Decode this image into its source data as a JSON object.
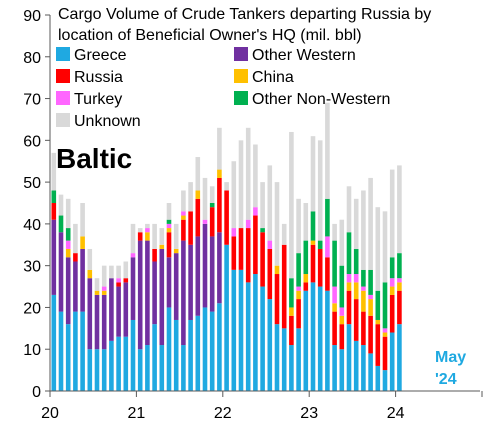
{
  "chart_data": {
    "type": "bar",
    "stacked": true,
    "title": "Cargo Volume of Crude Tankers departing Russia by location of Beneficial Owner's HQ (mil. bbl)",
    "label": "Baltic",
    "annotation": {
      "line1": "May",
      "line2": "'24"
    },
    "ylim": [
      0,
      90
    ],
    "yticks": [
      0,
      10,
      20,
      30,
      40,
      50,
      60,
      70,
      80,
      90
    ],
    "xticks": [
      {
        "label": "20",
        "month_index": 0
      },
      {
        "label": "21",
        "month_index": 12
      },
      {
        "label": "22",
        "month_index": 24
      },
      {
        "label": "23",
        "month_index": 36
      },
      {
        "label": "24",
        "month_index": 48
      }
    ],
    "grid": false,
    "legend_position": "top-left",
    "series": [
      {
        "name": "Greece",
        "color": "#1fa9e1",
        "values": [
          23,
          19,
          16,
          19,
          19,
          10,
          10,
          10,
          12,
          13,
          13,
          17,
          10,
          11,
          16,
          11,
          20,
          17,
          11,
          17,
          18,
          20,
          19,
          21,
          35,
          29,
          29,
          26,
          28,
          25,
          22,
          16,
          15,
          11,
          15,
          24,
          26,
          25,
          24,
          11,
          10,
          16,
          12,
          11,
          9,
          6,
          5,
          14,
          16
        ]
      },
      {
        "name": "Other Western",
        "color": "#7030a0",
        "values": [
          18,
          19,
          16,
          12,
          15,
          17,
          13,
          13,
          15,
          12,
          13,
          15,
          26,
          25,
          15,
          23,
          12,
          16,
          25,
          18,
          19,
          20,
          18,
          17,
          0,
          0,
          0,
          0,
          0,
          0,
          0,
          0,
          0,
          0,
          0,
          0,
          0,
          0,
          0,
          0,
          0,
          0,
          0,
          0,
          0,
          0,
          0,
          0,
          0
        ]
      },
      {
        "name": "Russia",
        "color": "#ff0000",
        "values": [
          4,
          0,
          0,
          2,
          0,
          0,
          0,
          0,
          0,
          1,
          1,
          0,
          2,
          0,
          3,
          0,
          6,
          0,
          5,
          8,
          9,
          0,
          7,
          13,
          13,
          8,
          10,
          13,
          14,
          13,
          12,
          12,
          20,
          7,
          7,
          2,
          9,
          9,
          8,
          8,
          6,
          8,
          10,
          8,
          9,
          10,
          8,
          9,
          8
        ]
      },
      {
        "name": "China",
        "color": "#ffc000",
        "values": [
          0,
          0,
          2,
          0,
          3,
          2,
          1,
          1,
          0,
          0,
          0,
          0,
          0,
          2,
          0,
          1,
          1,
          1,
          1,
          0,
          2,
          0,
          0,
          2,
          0,
          0,
          0,
          0,
          0,
          0,
          0,
          2,
          0,
          2,
          2,
          2,
          1,
          0,
          0,
          2,
          2,
          2,
          4,
          5,
          4,
          1,
          1,
          2,
          2
        ]
      },
      {
        "name": "Turkey",
        "color": "#ff66ff",
        "values": [
          0,
          0,
          2,
          0,
          0,
          0,
          0,
          1,
          0,
          1,
          0,
          1,
          0,
          1,
          0,
          0,
          1,
          0,
          1,
          0,
          0,
          1,
          0,
          0,
          0,
          2,
          0,
          2,
          2,
          0,
          2,
          0,
          0,
          0,
          1,
          0,
          0,
          0,
          5,
          4,
          2,
          2,
          2,
          1,
          1,
          0,
          1,
          2,
          1
        ]
      },
      {
        "name": "Other Non-Western",
        "color": "#00b050",
        "values": [
          3,
          4,
          3,
          0,
          0,
          0,
          0,
          0,
          0,
          0,
          0,
          0,
          0,
          0,
          0,
          0,
          1,
          0,
          0,
          0,
          0,
          0,
          1,
          0,
          0,
          0,
          0,
          0,
          0,
          1,
          0,
          0,
          0,
          7,
          8,
          8,
          7,
          2,
          9,
          11,
          10,
          10,
          6,
          4,
          6,
          7,
          11,
          5,
          6
        ]
      },
      {
        "name": "Unknown",
        "color": "#d9d9d9",
        "values": [
          9,
          5,
          7,
          7,
          8,
          5,
          3,
          5,
          3,
          3,
          4,
          7,
          1,
          1,
          6,
          4,
          4,
          6,
          5,
          7,
          8,
          10,
          4,
          10,
          2,
          16,
          21,
          22,
          15,
          11,
          18,
          20,
          5,
          35,
          13,
          9,
          18,
          24,
          23,
          4,
          11,
          11,
          12,
          19,
          22,
          20,
          17,
          21,
          21
        ]
      }
    ]
  }
}
